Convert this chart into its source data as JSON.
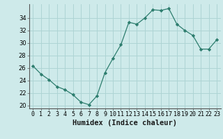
{
  "x": [
    0,
    1,
    2,
    3,
    4,
    5,
    6,
    7,
    8,
    9,
    10,
    11,
    12,
    13,
    14,
    15,
    16,
    17,
    18,
    19,
    20,
    21,
    22,
    23
  ],
  "y": [
    26.3,
    25.0,
    24.1,
    23.0,
    22.5,
    21.7,
    20.5,
    20.1,
    21.5,
    25.2,
    27.5,
    29.7,
    33.3,
    33.0,
    34.0,
    35.3,
    35.2,
    35.5,
    33.0,
    32.0,
    31.2,
    29.0,
    29.0,
    30.5
  ],
  "line_color": "#2d7d6e",
  "marker": "D",
  "marker_size": 2.2,
  "bg_color": "#ceeaea",
  "grid_color": "#aed4d4",
  "xlabel": "Humidex (Indice chaleur)",
  "ylabel": "",
  "ylim": [
    19.5,
    36.2
  ],
  "yticks": [
    20,
    22,
    24,
    26,
    28,
    30,
    32,
    34
  ],
  "xlim": [
    -0.5,
    23.5
  ],
  "xtick_labels": [
    "0",
    "1",
    "2",
    "3",
    "4",
    "5",
    "6",
    "7",
    "8",
    "9",
    "10",
    "11",
    "12",
    "13",
    "14",
    "15",
    "16",
    "17",
    "18",
    "19",
    "20",
    "21",
    "22",
    "23"
  ],
  "tick_fontsize": 6.0,
  "xlabel_fontsize": 7.5
}
